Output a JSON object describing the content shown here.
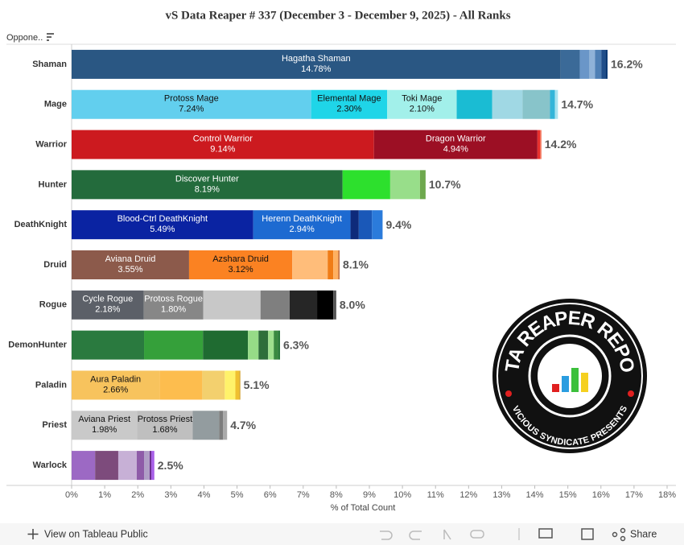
{
  "chart_data": {
    "type": "stacked-bar-horizontal",
    "title": "vS Data Reaper # 337 (December 3 - December 9, 2025) - All Ranks",
    "filter_label": "Oppone..",
    "x_label": "% of Total Count",
    "xlim": [
      0,
      18
    ],
    "xticks": [
      {
        "value": 0,
        "label": "0%"
      },
      {
        "value": 1,
        "label": "1%"
      },
      {
        "value": 2,
        "label": "2%"
      },
      {
        "value": 3,
        "label": "3%"
      },
      {
        "value": 4,
        "label": "4%"
      },
      {
        "value": 5,
        "label": "5%"
      },
      {
        "value": 6,
        "label": "6%"
      },
      {
        "value": 7,
        "label": "7%"
      },
      {
        "value": 8,
        "label": "8%"
      },
      {
        "value": 9,
        "label": "9%"
      },
      {
        "value": 10,
        "label": "10%"
      },
      {
        "value": 11,
        "label": "11%"
      },
      {
        "value": 12,
        "label": "12%"
      },
      {
        "value": 13,
        "label": "13%"
      },
      {
        "value": 14,
        "label": "14%"
      },
      {
        "value": 15,
        "label": "15%"
      },
      {
        "value": 16,
        "label": "16%"
      },
      {
        "value": 17,
        "label": "17%"
      },
      {
        "value": 18,
        "label": "18%"
      }
    ],
    "bars": [
      {
        "category": "Shaman",
        "total": 16.2,
        "total_label": "16.2%",
        "segments": [
          {
            "name": "Hagatha Shaman",
            "value": 14.78,
            "value_label": "14.78%",
            "color": "#2a5783"
          },
          {
            "value": 0.58,
            "color": "#3b6a98"
          },
          {
            "value": 0.29,
            "color": "#6a96c8"
          },
          {
            "value": 0.17,
            "color": "#8fb2d8"
          },
          {
            "value": 0.19,
            "color": "#4e7fb5"
          },
          {
            "value": 0.12,
            "color": "#1f4e8a"
          },
          {
            "value": 0.07,
            "color": "#0b3a75"
          }
        ]
      },
      {
        "category": "Mage",
        "total": 14.7,
        "total_label": "14.7%",
        "segments": [
          {
            "name": "Protoss Mage",
            "value": 7.24,
            "value_label": "7.24%",
            "color": "#62cfee"
          },
          {
            "name": "Elemental Mage",
            "value": 2.3,
            "value_label": "2.30%",
            "color": "#1fd5e8"
          },
          {
            "name": "Toki Mage",
            "value": 2.1,
            "value_label": "2.10%",
            "color": "#a2f0ea"
          },
          {
            "value": 1.07,
            "color": "#1abcd3"
          },
          {
            "value": 0.92,
            "color": "#a0d8e4"
          },
          {
            "value": 0.83,
            "color": "#88c4ca"
          },
          {
            "value": 0.15,
            "color": "#33b5d9"
          },
          {
            "value": 0.09,
            "color": "#a9e4f0"
          }
        ]
      },
      {
        "category": "Warrior",
        "total": 14.2,
        "total_label": "14.2%",
        "segments": [
          {
            "name": "Control Warrior",
            "value": 9.14,
            "value_label": "9.14%",
            "color": "#cc1a1f"
          },
          {
            "name": "Dragon Warrior",
            "value": 4.94,
            "value_label": "4.94%",
            "color": "#9c0f24"
          },
          {
            "value": 0.08,
            "color": "#e8302e"
          },
          {
            "value": 0.04,
            "color": "#f26a4f"
          }
        ]
      },
      {
        "category": "Hunter",
        "total": 10.7,
        "total_label": "10.7%",
        "segments": [
          {
            "name": "Discover Hunter",
            "value": 8.19,
            "value_label": "8.19%",
            "color": "#236b3c"
          },
          {
            "value": 1.44,
            "color": "#2de02d"
          },
          {
            "value": 0.9,
            "color": "#98de8a"
          },
          {
            "value": 0.17,
            "color": "#6ea84e"
          }
        ]
      },
      {
        "category": "DeathKnight",
        "total": 9.4,
        "total_label": "9.4%",
        "segments": [
          {
            "name": "Blood-Ctrl DeathKnight",
            "value": 5.49,
            "value_label": "5.49%",
            "color": "#0a23a2"
          },
          {
            "name": "Herenn DeathKnight",
            "value": 2.94,
            "value_label": "2.94%",
            "color": "#1d6ad1"
          },
          {
            "value": 0.25,
            "color": "#0e2a7a"
          },
          {
            "value": 0.4,
            "color": "#1a58b8"
          },
          {
            "value": 0.32,
            "color": "#2b7bdb"
          }
        ]
      },
      {
        "category": "Druid",
        "total": 8.1,
        "total_label": "8.1%",
        "segments": [
          {
            "name": "Aviana Druid",
            "value": 3.55,
            "value_label": "3.55%",
            "color": "#8c5a4b"
          },
          {
            "name": "Azshara Druid",
            "value": 3.12,
            "value_label": "3.12%",
            "color": "#fb8222"
          },
          {
            "value": 1.07,
            "color": "#ffbd7a"
          },
          {
            "value": 0.17,
            "color": "#f07c16"
          },
          {
            "value": 0.15,
            "color": "#ffb060"
          },
          {
            "value": 0.04,
            "color": "#c46d3a"
          }
        ]
      },
      {
        "category": "Rogue",
        "total": 8.0,
        "total_label": "8.0%",
        "segments": [
          {
            "name": "Cycle Rogue",
            "value": 2.18,
            "value_label": "2.18%",
            "color": "#5c6068"
          },
          {
            "name": "Protoss Rogue",
            "value": 1.8,
            "value_label": "1.80%",
            "color": "#878787"
          },
          {
            "value": 1.73,
            "color": "#c8c8c8"
          },
          {
            "value": 0.88,
            "color": "#7f7f7f"
          },
          {
            "value": 0.83,
            "color": "#262626"
          },
          {
            "value": 0.49,
            "color": "#000000"
          },
          {
            "value": 0.09,
            "color": "#555555"
          }
        ]
      },
      {
        "category": "DemonHunter",
        "total": 6.3,
        "total_label": "6.3%",
        "segments": [
          {
            "value": 2.19,
            "color": "#2a7a3f"
          },
          {
            "value": 1.78,
            "color": "#35a03a"
          },
          {
            "value": 1.36,
            "color": "#1f6b31"
          },
          {
            "value": 0.32,
            "color": "#96db87"
          },
          {
            "value": 0.29,
            "color": "#2e6e3a"
          },
          {
            "value": 0.17,
            "color": "#9fe08e"
          },
          {
            "value": 0.12,
            "color": "#3a8a40"
          },
          {
            "value": 0.07,
            "color": "#2a7a3a"
          }
        ]
      },
      {
        "category": "Paladin",
        "total": 5.1,
        "total_label": "5.1%",
        "segments": [
          {
            "name": "Aura Paladin",
            "value": 2.66,
            "value_label": "2.66%",
            "color": "#f7c35d"
          },
          {
            "value": 1.29,
            "color": "#fdbd4e"
          },
          {
            "value": 0.68,
            "color": "#f3d06e"
          },
          {
            "value": 0.32,
            "color": "#fff26a"
          },
          {
            "value": 0.12,
            "color": "#f0c030"
          },
          {
            "value": 0.03,
            "color": "#d3a12a"
          }
        ]
      },
      {
        "category": "Priest",
        "total": 4.7,
        "total_label": "4.7%",
        "segments": [
          {
            "name": "Aviana Priest",
            "value": 1.98,
            "value_label": "1.98%",
            "color": "#c9c9c9"
          },
          {
            "name": "Protoss Priest",
            "value": 1.68,
            "value_label": "1.68%",
            "color": "#bfbfbf"
          },
          {
            "value": 0.8,
            "color": "#939c9f"
          },
          {
            "value": 0.12,
            "color": "#7d7d7d"
          },
          {
            "value": 0.12,
            "color": "#aaaaaa"
          }
        ]
      },
      {
        "category": "Warlock",
        "total": 2.5,
        "total_label": "2.5%",
        "segments": [
          {
            "value": 0.71,
            "color": "#9c69c4"
          },
          {
            "value": 0.7,
            "color": "#7d4b7c"
          },
          {
            "value": 0.56,
            "color": "#c7b0d6"
          },
          {
            "value": 0.22,
            "color": "#8e5ba8"
          },
          {
            "value": 0.17,
            "color": "#b09ec6"
          },
          {
            "value": 0.05,
            "color": "#6b2c8f"
          },
          {
            "value": 0.09,
            "color": "#a85ee8"
          }
        ]
      }
    ]
  },
  "logo": {
    "top_text": "DATA REAPER REPORT",
    "bottom_text": "VICIOUS SYNDICATE PRESENTS"
  },
  "toolbar": {
    "view_link": "View on Tableau Public",
    "share": "Share"
  }
}
